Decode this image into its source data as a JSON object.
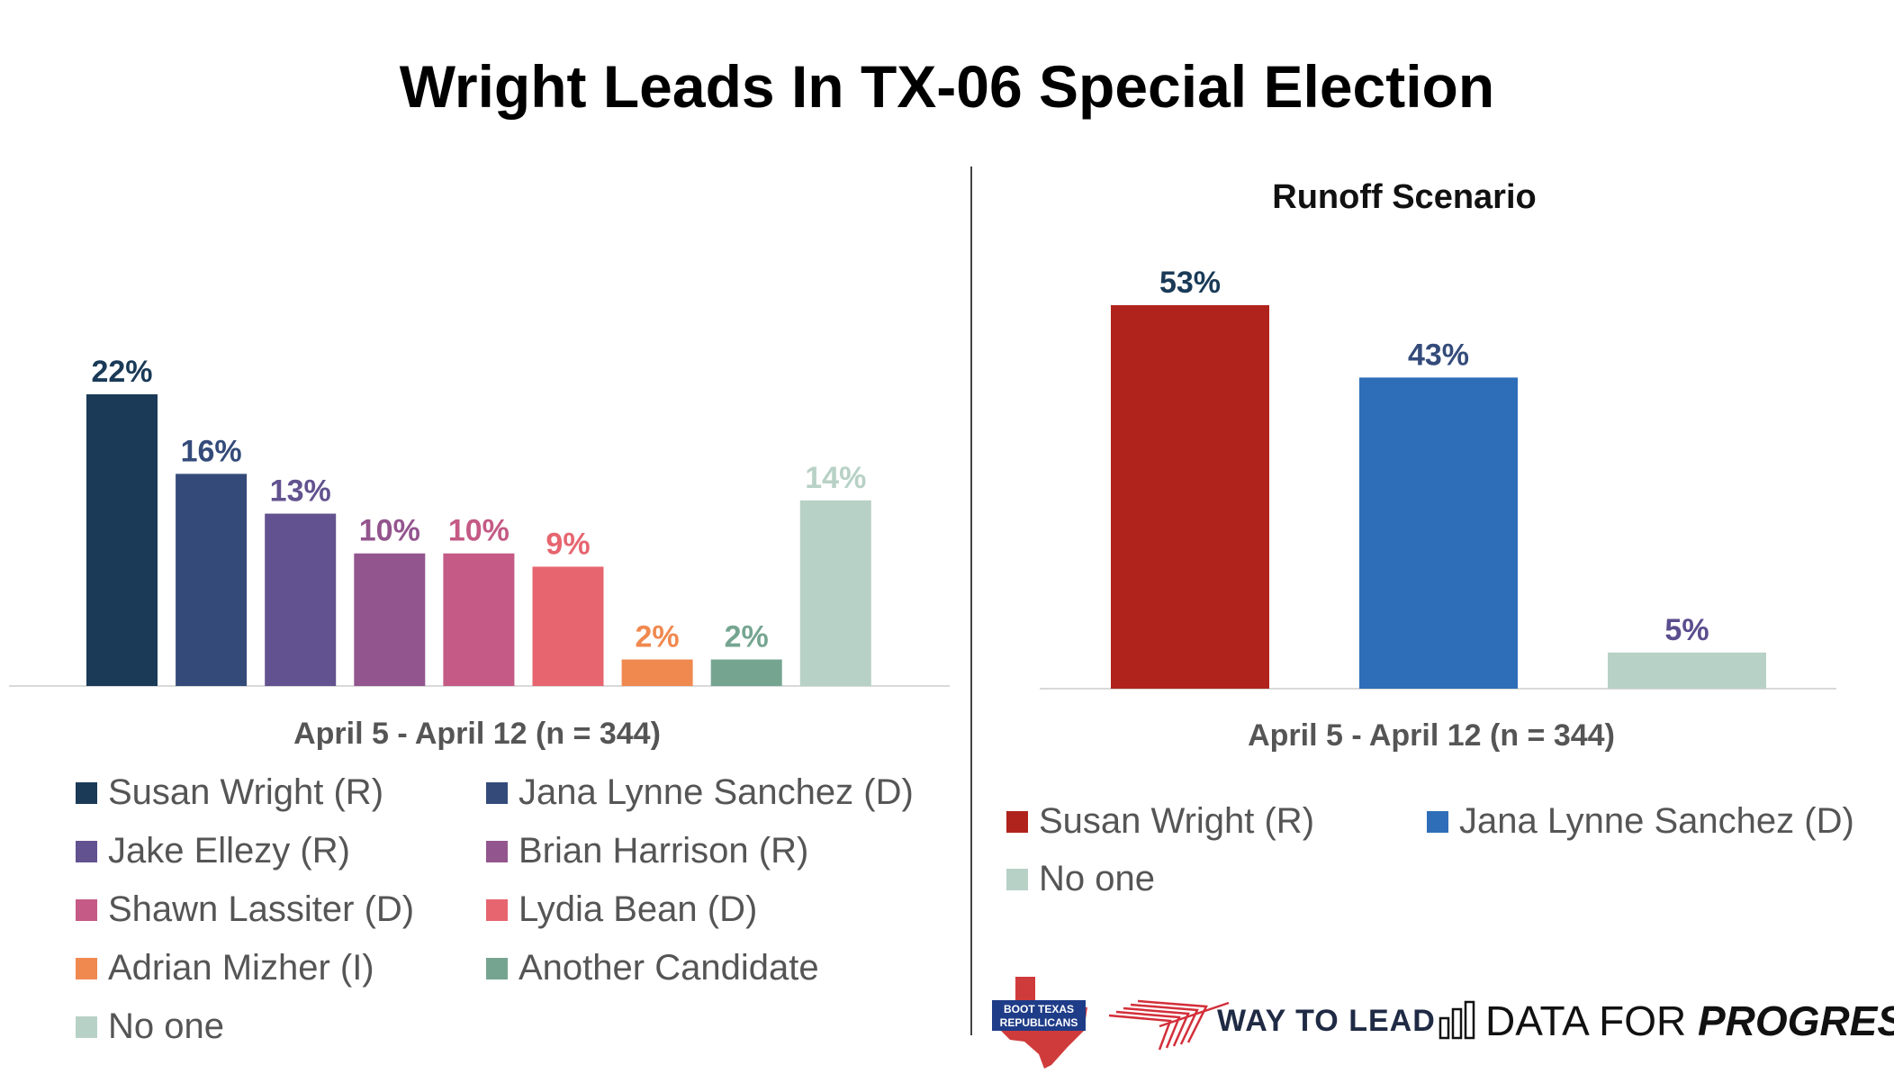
{
  "title": "Wright Leads In TX-06 Special Election",
  "chart_data": [
    {
      "type": "bar",
      "title": "",
      "subtitle": "April 5 - April 12 (n = 344)",
      "categories": [
        "Susan Wright (R)",
        "Jana Lynne Sanchez (D)",
        "Jake Ellezy (R)",
        "Brian Harrison (R)",
        "Shawn Lassiter (D)",
        "Lydia Bean (D)",
        "Adrian Mizher (I)",
        "Another Candidate",
        "No one"
      ],
      "values": [
        22,
        16,
        13,
        10,
        10,
        9,
        2,
        2,
        14
      ],
      "labels": [
        "22%",
        "16%",
        "13%",
        "10%",
        "10%",
        "9%",
        "2%",
        "2%",
        "14%"
      ],
      "colors": [
        "#1a3a57",
        "#344b7a",
        "#62528f",
        "#93558e",
        "#c45a85",
        "#e6656f",
        "#f0894f",
        "#75a590",
        "#b8d1c6"
      ],
      "legend_placement": "bottom",
      "grid": false
    },
    {
      "type": "bar",
      "title": "Runoff Scenario",
      "subtitle": "April 5 - April 12 (n = 344)",
      "categories": [
        "Susan Wright (R)",
        "Jana Lynne Sanchez (D)",
        "No one"
      ],
      "values": [
        53,
        43,
        5
      ],
      "labels": [
        "53%",
        "43%",
        "5%"
      ],
      "colors": [
        "#b0231c",
        "#2e6eb8",
        "#b8d1c6"
      ],
      "label_colors": [
        "#1a3a57",
        "#344b7a",
        "#5b4d8e"
      ],
      "legend_placement": "bottom",
      "grid": false
    }
  ],
  "logos": {
    "boot_texas": "BOOT TEXAS REPUBLICANS",
    "way_to_lead": "WAY TO LEAD",
    "dfp_prefix": "DATA FOR",
    "dfp_emphasis": "PROGRESS"
  }
}
